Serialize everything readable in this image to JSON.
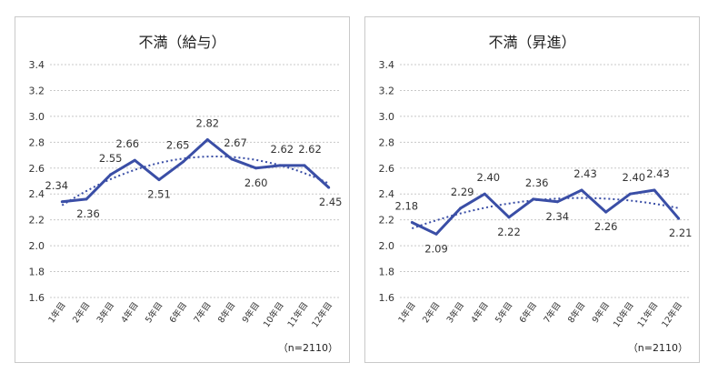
{
  "colors": {
    "series": "#3a4ea6",
    "grid": "#c8c8c8"
  },
  "chart_data": [
    {
      "type": "line",
      "title": "不満（給与）",
      "note": "（n=2110）",
      "categories": [
        "1年目",
        "2年目",
        "3年目",
        "4年目",
        "5年目",
        "6年目",
        "7年目",
        "8年目",
        "9年目",
        "10年目",
        "11年目",
        "12年目"
      ],
      "series": [
        {
          "values": [
            2.34,
            2.36,
            2.55,
            2.66,
            2.51,
            2.65,
            2.82,
            2.67,
            2.6,
            2.62,
            2.62,
            2.45
          ]
        }
      ],
      "value_labels": [
        "2.34",
        "2.36",
        "2.55",
        "2.66",
        "2.51",
        "2.65",
        "2.82",
        "2.67",
        "2.60",
        "2.62",
        "2.62",
        "2.45"
      ],
      "trendline": "polynomial",
      "ylim": [
        1.6,
        3.4
      ],
      "yticks": [
        1.6,
        1.8,
        2.0,
        2.2,
        2.4,
        2.6,
        2.8,
        3.0,
        3.2,
        3.4
      ],
      "ytick_labels": [
        "1.6",
        "1.8",
        "2.0",
        "2.2",
        "2.4",
        "2.6",
        "2.8",
        "3.0",
        "3.2",
        "3.4"
      ],
      "grid": true
    },
    {
      "type": "line",
      "title": "不満（昇進）",
      "note": "（n=2110）",
      "categories": [
        "1年目",
        "2年目",
        "3年目",
        "4年目",
        "5年目",
        "6年目",
        "7年目",
        "8年目",
        "9年目",
        "10年目",
        "11年目",
        "12年目"
      ],
      "series": [
        {
          "values": [
            2.18,
            2.09,
            2.29,
            2.4,
            2.22,
            2.36,
            2.34,
            2.43,
            2.26,
            2.4,
            2.43,
            2.21
          ]
        }
      ],
      "value_labels": [
        "2.18",
        "2.09",
        "2.29",
        "2.40",
        "2.22",
        "2.36",
        "2.34",
        "2.43",
        "2.26",
        "2.40",
        "2.43",
        "2.21"
      ],
      "trendline": "polynomial",
      "ylim": [
        1.6,
        3.4
      ],
      "yticks": [
        1.6,
        1.8,
        2.0,
        2.2,
        2.4,
        2.6,
        2.8,
        3.0,
        3.2,
        3.4
      ],
      "ytick_labels": [
        "1.6",
        "1.8",
        "2.0",
        "2.2",
        "2.4",
        "2.6",
        "2.8",
        "3.0",
        "3.2",
        "3.4"
      ],
      "grid": true
    }
  ]
}
